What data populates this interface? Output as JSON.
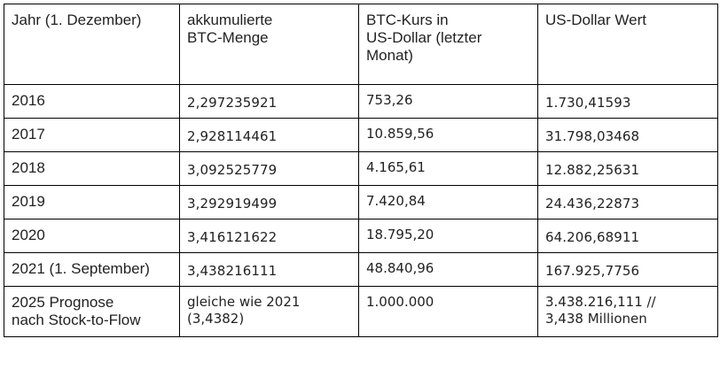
{
  "header": {
    "col1": "Jahr (1. Dezember)",
    "col2_line1": "akkumulierte",
    "col2_line2": "BTC-Menge",
    "col3_line1": "BTC-Kurs in",
    "col3_line2": "US-Dollar (letzter",
    "col3_line3": "Monat)",
    "col4": "US-Dollar Wert"
  },
  "rows": [
    {
      "year": "2016",
      "amount": "2,297235921",
      "price": "753,26",
      "usd": "1.730,41593"
    },
    {
      "year": "2017",
      "amount": "2,928114461",
      "price": "10.859,56",
      "usd": "31.798,03468"
    },
    {
      "year": "2018",
      "amount": "3,092525779",
      "price": "4.165,61",
      "usd": "12.882,25631"
    },
    {
      "year": "2019",
      "amount": "3,292919499",
      "price": "7.420,84",
      "usd": "24.436,22873"
    },
    {
      "year": "2020",
      "amount": "3,416121622",
      "price": "18.795,20",
      "usd": "64.206,68911"
    },
    {
      "year": "2021 (1. September)",
      "amount": "3,438216111",
      "price": "48.840,96",
      "usd": "167.925,7756"
    }
  ],
  "forecast": {
    "year_line1": "2025 Prognose",
    "year_line2": "nach Stock-to-Flow",
    "amount_line1": "gleiche wie 2021",
    "amount_line2": "(3,4382)",
    "price": "1.000.000",
    "usd_line1": "3.438.216,111 //",
    "usd_line2": "3,438 Millionen"
  }
}
